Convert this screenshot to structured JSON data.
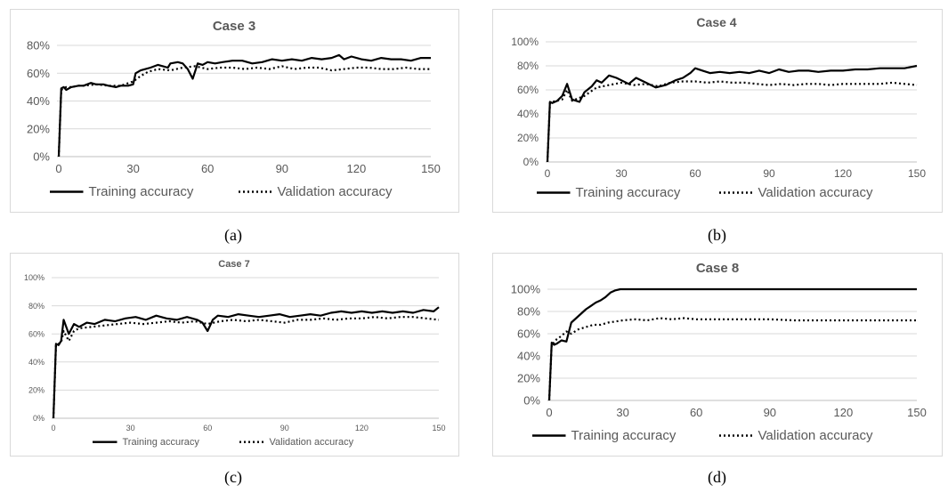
{
  "chart_data": [
    {
      "type": "line",
      "title": "Case 3",
      "caption": "(a)",
      "x_ticks": [
        "0",
        "30",
        "60",
        "90",
        "120",
        "150"
      ],
      "y_ticks": [
        "0%",
        "20%",
        "40%",
        "60%",
        "80%"
      ],
      "xlim": [
        0,
        150
      ],
      "ylim": [
        0,
        80
      ],
      "grid": true,
      "legend_position": "bottom",
      "series": [
        {
          "name": "Training accuracy",
          "style": "solid",
          "x": [
            0,
            1,
            2,
            3,
            5,
            8,
            10,
            13,
            15,
            18,
            20,
            23,
            25,
            28,
            30,
            31,
            33,
            35,
            37,
            40,
            42,
            44,
            45,
            48,
            50,
            52,
            54,
            56,
            58,
            60,
            63,
            66,
            70,
            74,
            78,
            82,
            86,
            90,
            94,
            98,
            102,
            106,
            110,
            113,
            115,
            118,
            122,
            126,
            130,
            134,
            138,
            142,
            146,
            150
          ],
          "y": [
            0,
            49,
            50,
            48,
            50,
            51,
            51,
            53,
            52,
            52,
            51,
            50,
            51,
            51,
            52,
            60,
            62,
            63,
            64,
            66,
            65,
            64,
            67,
            68,
            67,
            63,
            56,
            67,
            66,
            68,
            67,
            68,
            69,
            69,
            67,
            68,
            70,
            69,
            70,
            69,
            71,
            70,
            71,
            73,
            70,
            72,
            70,
            69,
            71,
            70,
            70,
            69,
            71,
            71
          ]
        },
        {
          "name": "Validation accuracy",
          "style": "dotted",
          "x": [
            0,
            1,
            2,
            3,
            5,
            8,
            10,
            15,
            20,
            25,
            30,
            33,
            36,
            40,
            45,
            50,
            55,
            60,
            65,
            70,
            75,
            80,
            85,
            90,
            95,
            100,
            105,
            110,
            115,
            120,
            125,
            130,
            135,
            140,
            145,
            150
          ],
          "y": [
            0,
            48,
            49,
            50,
            50,
            51,
            51,
            52,
            51,
            51,
            54,
            58,
            61,
            63,
            62,
            64,
            65,
            63,
            64,
            64,
            63,
            64,
            63,
            65,
            63,
            64,
            64,
            62,
            63,
            64,
            64,
            63,
            63,
            64,
            63,
            63
          ]
        }
      ]
    },
    {
      "type": "line",
      "title": "Case 4",
      "caption": "(b)",
      "x_ticks": [
        "0",
        "30",
        "60",
        "90",
        "120",
        "150"
      ],
      "y_ticks": [
        "0%",
        "20%",
        "40%",
        "60%",
        "80%",
        "100%"
      ],
      "xlim": [
        0,
        150
      ],
      "ylim": [
        0,
        100
      ],
      "grid": true,
      "legend_position": "bottom",
      "series": [
        {
          "name": "Training accuracy",
          "style": "solid",
          "x": [
            0,
            1,
            2,
            4,
            6,
            8,
            10,
            13,
            15,
            18,
            20,
            22,
            25,
            28,
            30,
            33,
            36,
            40,
            44,
            48,
            52,
            55,
            58,
            60,
            63,
            66,
            70,
            74,
            78,
            82,
            86,
            90,
            94,
            98,
            102,
            106,
            110,
            115,
            120,
            125,
            130,
            135,
            140,
            145,
            150
          ],
          "y": [
            0,
            50,
            49,
            51,
            55,
            65,
            52,
            50,
            58,
            63,
            68,
            66,
            72,
            70,
            68,
            65,
            70,
            66,
            62,
            64,
            68,
            70,
            74,
            78,
            76,
            74,
            75,
            74,
            75,
            74,
            76,
            74,
            77,
            75,
            76,
            76,
            75,
            76,
            76,
            77,
            77,
            78,
            78,
            78,
            80
          ]
        },
        {
          "name": "Validation accuracy",
          "style": "dotted",
          "x": [
            0,
            1,
            2,
            4,
            6,
            8,
            10,
            15,
            20,
            25,
            30,
            35,
            40,
            45,
            50,
            55,
            60,
            65,
            70,
            75,
            80,
            85,
            90,
            95,
            100,
            105,
            110,
            115,
            120,
            125,
            130,
            135,
            140,
            145,
            150
          ],
          "y": [
            0,
            49,
            50,
            51,
            52,
            60,
            51,
            55,
            62,
            64,
            66,
            64,
            65,
            63,
            66,
            67,
            67,
            66,
            67,
            66,
            66,
            65,
            64,
            65,
            64,
            65,
            65,
            64,
            65,
            65,
            65,
            65,
            66,
            65,
            64
          ]
        }
      ]
    },
    {
      "type": "line",
      "title": "Case 7",
      "caption": "(c)",
      "x_ticks": [
        "0",
        "30",
        "60",
        "90",
        "120",
        "150"
      ],
      "y_ticks": [
        "0%",
        "20%",
        "40%",
        "60%",
        "80%",
        "100%"
      ],
      "xlim": [
        0,
        150
      ],
      "ylim": [
        0,
        100
      ],
      "grid": true,
      "legend_position": "bottom",
      "series": [
        {
          "name": "Training accuracy",
          "style": "solid",
          "x": [
            0,
            1,
            2,
            3,
            4,
            6,
            8,
            10,
            13,
            16,
            20,
            24,
            28,
            32,
            36,
            40,
            44,
            48,
            52,
            56,
            58,
            60,
            62,
            64,
            68,
            72,
            76,
            80,
            84,
            88,
            92,
            96,
            100,
            104,
            108,
            112,
            116,
            120,
            124,
            128,
            132,
            136,
            140,
            144,
            148,
            150
          ],
          "y": [
            0,
            53,
            52,
            55,
            70,
            60,
            67,
            65,
            68,
            67,
            70,
            69,
            71,
            72,
            70,
            73,
            71,
            70,
            72,
            70,
            68,
            62,
            70,
            73,
            72,
            74,
            73,
            72,
            73,
            74,
            72,
            73,
            74,
            73,
            75,
            76,
            75,
            76,
            75,
            76,
            75,
            76,
            75,
            77,
            76,
            79
          ]
        },
        {
          "name": "Validation accuracy",
          "style": "dotted",
          "x": [
            0,
            1,
            2,
            3,
            4,
            6,
            8,
            10,
            15,
            20,
            25,
            30,
            35,
            40,
            45,
            50,
            55,
            60,
            65,
            70,
            75,
            80,
            85,
            90,
            95,
            100,
            105,
            110,
            115,
            120,
            125,
            130,
            135,
            140,
            145,
            150
          ],
          "y": [
            0,
            52,
            53,
            54,
            62,
            55,
            62,
            64,
            65,
            66,
            67,
            68,
            67,
            68,
            69,
            68,
            69,
            67,
            69,
            70,
            69,
            70,
            69,
            68,
            70,
            70,
            71,
            70,
            71,
            71,
            72,
            71,
            72,
            72,
            71,
            70
          ]
        }
      ]
    },
    {
      "type": "line",
      "title": "Case 8",
      "caption": "(d)",
      "x_ticks": [
        "0",
        "30",
        "60",
        "90",
        "120",
        "150"
      ],
      "y_ticks": [
        "0%",
        "20%",
        "40%",
        "60%",
        "80%",
        "100%"
      ],
      "xlim": [
        0,
        150
      ],
      "ylim": [
        0,
        100
      ],
      "grid": true,
      "legend_position": "bottom",
      "series": [
        {
          "name": "Training accuracy",
          "style": "solid",
          "x": [
            0,
            1,
            2,
            3,
            5,
            7,
            9,
            11,
            13,
            15,
            17,
            19,
            21,
            23,
            25,
            27,
            29,
            35,
            50,
            70,
            90,
            110,
            130,
            150
          ],
          "y": [
            0,
            52,
            50,
            51,
            54,
            53,
            70,
            74,
            78,
            82,
            85,
            88,
            90,
            93,
            97,
            99,
            100,
            100,
            100,
            100,
            100,
            100,
            100,
            100
          ]
        },
        {
          "name": "Validation accuracy",
          "style": "dotted",
          "x": [
            0,
            1,
            2,
            3,
            5,
            7,
            9,
            12,
            15,
            18,
            21,
            24,
            27,
            30,
            35,
            40,
            45,
            50,
            55,
            60,
            70,
            80,
            90,
            100,
            110,
            120,
            130,
            140,
            150
          ],
          "y": [
            0,
            51,
            52,
            55,
            58,
            62,
            60,
            64,
            66,
            68,
            68,
            70,
            71,
            72,
            73,
            72,
            74,
            73,
            74,
            73,
            73,
            73,
            73,
            72,
            72,
            72,
            72,
            72,
            72
          ]
        }
      ]
    }
  ]
}
